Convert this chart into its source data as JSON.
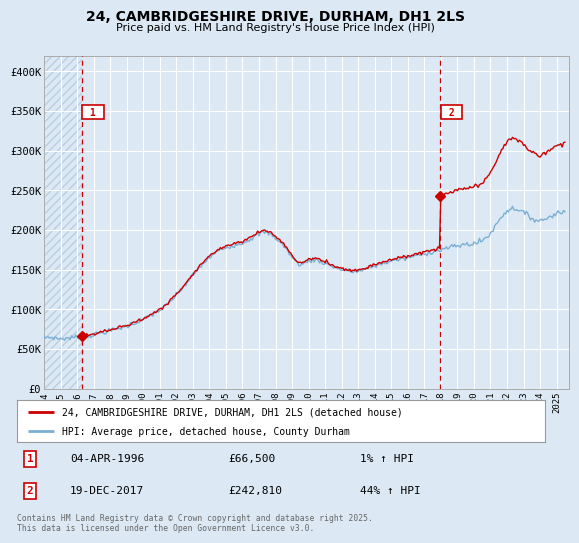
{
  "title": "24, CAMBRIDGESHIRE DRIVE, DURHAM, DH1 2LS",
  "subtitle": "Price paid vs. HM Land Registry's House Price Index (HPI)",
  "background_color": "#dce9f5",
  "plot_bg_color": "#dce9f5",
  "grid_color": "#ffffff",
  "red_line_color": "#cc0000",
  "blue_line_color": "#7bafd4",
  "annotation_box_color": "#cc0000",
  "dashed_line_color": "#cc0000",
  "ylim": [
    0,
    420000
  ],
  "yticks": [
    0,
    50000,
    100000,
    150000,
    200000,
    250000,
    300000,
    350000,
    400000
  ],
  "ytick_labels": [
    "£0",
    "£50K",
    "£100K",
    "£150K",
    "£200K",
    "£250K",
    "£300K",
    "£350K",
    "£400K"
  ],
  "sale1_year": 1996.27,
  "sale1_price": 66500,
  "sale2_year": 2017.96,
  "sale2_price": 242810,
  "legend_entry1": "24, CAMBRIDGESHIRE DRIVE, DURHAM, DH1 2LS (detached house)",
  "legend_entry2": "HPI: Average price, detached house, County Durham",
  "annotation1_date": "04-APR-1996",
  "annotation1_price": "£66,500",
  "annotation1_hpi": "1% ↑ HPI",
  "annotation2_date": "19-DEC-2017",
  "annotation2_price": "£242,810",
  "annotation2_hpi": "44% ↑ HPI",
  "footer": "Contains HM Land Registry data © Crown copyright and database right 2025.\nThis data is licensed under the Open Government Licence v3.0.",
  "xlim": [
    1994.0,
    2025.75
  ],
  "xticks": [
    1994,
    1995,
    1996,
    1997,
    1998,
    1999,
    2000,
    2001,
    2002,
    2003,
    2004,
    2005,
    2006,
    2007,
    2008,
    2009,
    2010,
    2011,
    2012,
    2013,
    2014,
    2015,
    2016,
    2017,
    2018,
    2019,
    2020,
    2021,
    2022,
    2023,
    2024,
    2025
  ]
}
